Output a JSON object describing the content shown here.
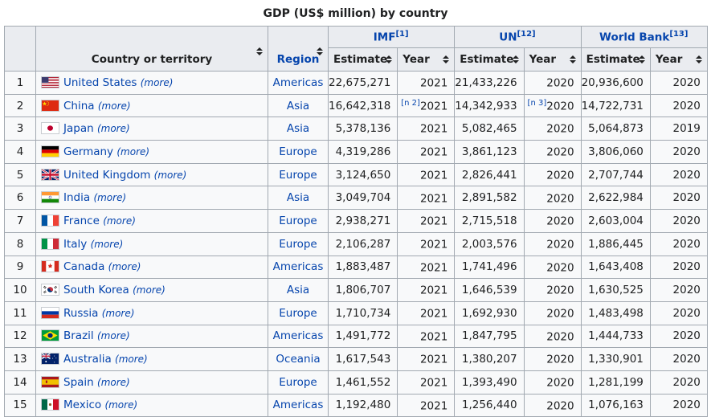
{
  "caption": "GDP (US$ million) by country",
  "headers": {
    "country": "Country or territory",
    "region": "Region",
    "imf": "IMF",
    "imf_ref": "[1]",
    "un": "UN",
    "un_ref": "[12]",
    "wb": "World Bank",
    "wb_ref": "[13]",
    "estimate": "Estimate",
    "year": "Year"
  },
  "more_label": "(more)",
  "rows": [
    {
      "rank": "1",
      "flag": "us",
      "country": "United States",
      "region": "Americas",
      "imf_est": "22,675,271",
      "imf_note": "",
      "imf_year": "2021",
      "un_est": "21,433,226",
      "un_note": "",
      "un_year": "2020",
      "wb_est": "20,936,600",
      "wb_year": "2020"
    },
    {
      "rank": "2",
      "flag": "cn",
      "country": "China",
      "region": "Asia",
      "imf_est": "16,642,318",
      "imf_note": "[n 2]",
      "imf_year": "2021",
      "un_est": "14,342,933",
      "un_note": "[n 3]",
      "un_year": "2020",
      "wb_est": "14,722,731",
      "wb_year": "2020"
    },
    {
      "rank": "3",
      "flag": "jp",
      "country": "Japan",
      "region": "Asia",
      "imf_est": "5,378,136",
      "imf_note": "",
      "imf_year": "2021",
      "un_est": "5,082,465",
      "un_note": "",
      "un_year": "2020",
      "wb_est": "5,064,873",
      "wb_year": "2019"
    },
    {
      "rank": "4",
      "flag": "de",
      "country": "Germany",
      "region": "Europe",
      "imf_est": "4,319,286",
      "imf_note": "",
      "imf_year": "2021",
      "un_est": "3,861,123",
      "un_note": "",
      "un_year": "2020",
      "wb_est": "3,806,060",
      "wb_year": "2020"
    },
    {
      "rank": "5",
      "flag": "gb",
      "country": "United Kingdom",
      "region": "Europe",
      "imf_est": "3,124,650",
      "imf_note": "",
      "imf_year": "2021",
      "un_est": "2,826,441",
      "un_note": "",
      "un_year": "2020",
      "wb_est": "2,707,744",
      "wb_year": "2020"
    },
    {
      "rank": "6",
      "flag": "in",
      "country": "India",
      "region": "Asia",
      "imf_est": "3,049,704",
      "imf_note": "",
      "imf_year": "2021",
      "un_est": "2,891,582",
      "un_note": "",
      "un_year": "2020",
      "wb_est": "2,622,984",
      "wb_year": "2020"
    },
    {
      "rank": "7",
      "flag": "fr",
      "country": "France",
      "region": "Europe",
      "imf_est": "2,938,271",
      "imf_note": "",
      "imf_year": "2021",
      "un_est": "2,715,518",
      "un_note": "",
      "un_year": "2020",
      "wb_est": "2,603,004",
      "wb_year": "2020"
    },
    {
      "rank": "8",
      "flag": "it",
      "country": "Italy",
      "region": "Europe",
      "imf_est": "2,106,287",
      "imf_note": "",
      "imf_year": "2021",
      "un_est": "2,003,576",
      "un_note": "",
      "un_year": "2020",
      "wb_est": "1,886,445",
      "wb_year": "2020"
    },
    {
      "rank": "9",
      "flag": "ca",
      "country": "Canada",
      "region": "Americas",
      "imf_est": "1,883,487",
      "imf_note": "",
      "imf_year": "2021",
      "un_est": "1,741,496",
      "un_note": "",
      "un_year": "2020",
      "wb_est": "1,643,408",
      "wb_year": "2020"
    },
    {
      "rank": "10",
      "flag": "kr",
      "country": "South Korea",
      "region": "Asia",
      "imf_est": "1,806,707",
      "imf_note": "",
      "imf_year": "2021",
      "un_est": "1,646,539",
      "un_note": "",
      "un_year": "2020",
      "wb_est": "1,630,525",
      "wb_year": "2020"
    },
    {
      "rank": "11",
      "flag": "ru",
      "country": "Russia",
      "region": "Europe",
      "imf_est": "1,710,734",
      "imf_note": "",
      "imf_year": "2021",
      "un_est": "1,692,930",
      "un_note": "",
      "un_year": "2020",
      "wb_est": "1,483,498",
      "wb_year": "2020"
    },
    {
      "rank": "12",
      "flag": "br",
      "country": "Brazil",
      "region": "Americas",
      "imf_est": "1,491,772",
      "imf_note": "",
      "imf_year": "2021",
      "un_est": "1,847,795",
      "un_note": "",
      "un_year": "2020",
      "wb_est": "1,444,733",
      "wb_year": "2020"
    },
    {
      "rank": "13",
      "flag": "au",
      "country": "Australia",
      "region": "Oceania",
      "imf_est": "1,617,543",
      "imf_note": "",
      "imf_year": "2021",
      "un_est": "1,380,207",
      "un_note": "",
      "un_year": "2020",
      "wb_est": "1,330,901",
      "wb_year": "2020"
    },
    {
      "rank": "14",
      "flag": "es",
      "country": "Spain",
      "region": "Europe",
      "imf_est": "1,461,552",
      "imf_note": "",
      "imf_year": "2021",
      "un_est": "1,393,490",
      "un_note": "",
      "un_year": "2020",
      "wb_est": "1,281,199",
      "wb_year": "2020"
    },
    {
      "rank": "15",
      "flag": "mx",
      "country": "Mexico",
      "region": "Americas",
      "imf_est": "1,192,480",
      "imf_note": "",
      "imf_year": "2021",
      "un_est": "1,256,440",
      "un_note": "",
      "un_year": "2020",
      "wb_est": "1,076,163",
      "wb_year": "2020"
    }
  ]
}
